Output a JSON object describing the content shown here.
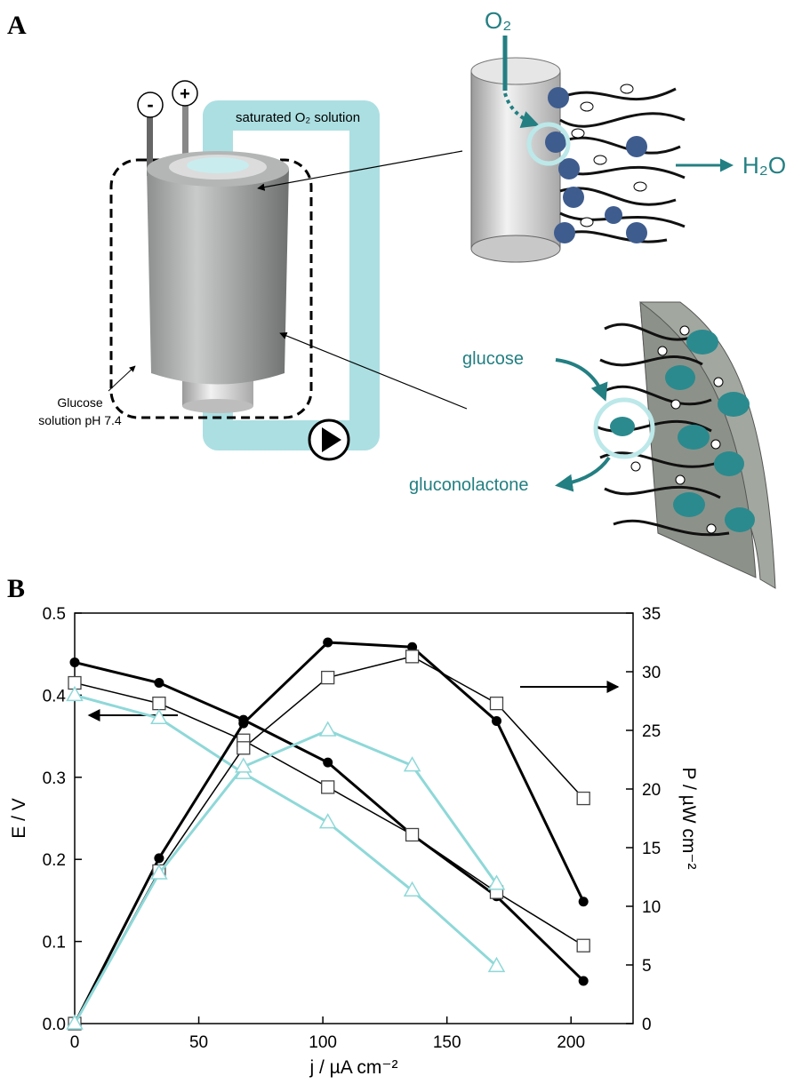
{
  "panel_a": {
    "label": "A",
    "tube_label": "saturated O₂ solution",
    "minus": "-",
    "plus": "+",
    "solution_label": [
      "Glucose",
      "solution pH 7.4"
    ],
    "o2": "O₂",
    "h2o": "H₂O",
    "glucose": "glucose",
    "gluconolactone": "gluconolactone"
  },
  "chart_data": {
    "type": "line",
    "panel_label": "B",
    "xlabel": "j / µA cm⁻²",
    "ylabel": "E / V",
    "y2label": "P / µW cm⁻²",
    "xlim": [
      0,
      225
    ],
    "xticks": [
      0,
      50,
      100,
      150,
      200
    ],
    "ylim": [
      0,
      0.5
    ],
    "yticks": [
      {
        "value": 0,
        "label": "0.0"
      },
      0.1,
      0.2,
      0.3,
      0.4,
      0.5
    ],
    "y2lim": [
      0,
      35
    ],
    "y2ticks": [
      0,
      5,
      10,
      15,
      20,
      25,
      30,
      35
    ],
    "series": [
      {
        "marker": "circle",
        "color": "#000000",
        "x": [
          0,
          34,
          68,
          102,
          136,
          170,
          205
        ],
        "values": [
          0.44,
          0.415,
          0.37,
          0.318,
          0.23,
          0.155,
          0.052
        ]
      },
      {
        "marker": "square",
        "color": "#000000",
        "x": [
          0,
          34,
          68,
          102,
          136,
          170,
          205
        ],
        "values": [
          0.415,
          0.39,
          0.345,
          0.288,
          0.23,
          0.16,
          0.095
        ]
      },
      {
        "marker": "triangle",
        "color": "#8fd8d8",
        "x": [
          0,
          34,
          68,
          102,
          136,
          170
        ],
        "values": [
          0.4,
          0.372,
          0.305,
          0.245,
          0.162,
          0.07
        ]
      },
      {
        "marker": "circle",
        "color": "#000000",
        "axis": "y2",
        "x": [
          0,
          34,
          68,
          102,
          136,
          170,
          205
        ],
        "values": [
          0,
          14.1,
          25.6,
          32.5,
          32.1,
          25.8,
          10.4
        ]
      },
      {
        "marker": "square",
        "color": "#000000",
        "axis": "y2",
        "x": [
          0,
          34,
          68,
          102,
          136,
          170,
          205
        ],
        "values": [
          0,
          13,
          23.5,
          29.5,
          31.3,
          27.3,
          19.2
        ]
      },
      {
        "marker": "triangle",
        "color": "#8fd8d8",
        "axis": "y2",
        "x": [
          0,
          34,
          68,
          102,
          136,
          170
        ],
        "values": [
          0,
          12.8,
          21.9,
          25,
          22,
          11.9
        ]
      }
    ]
  }
}
